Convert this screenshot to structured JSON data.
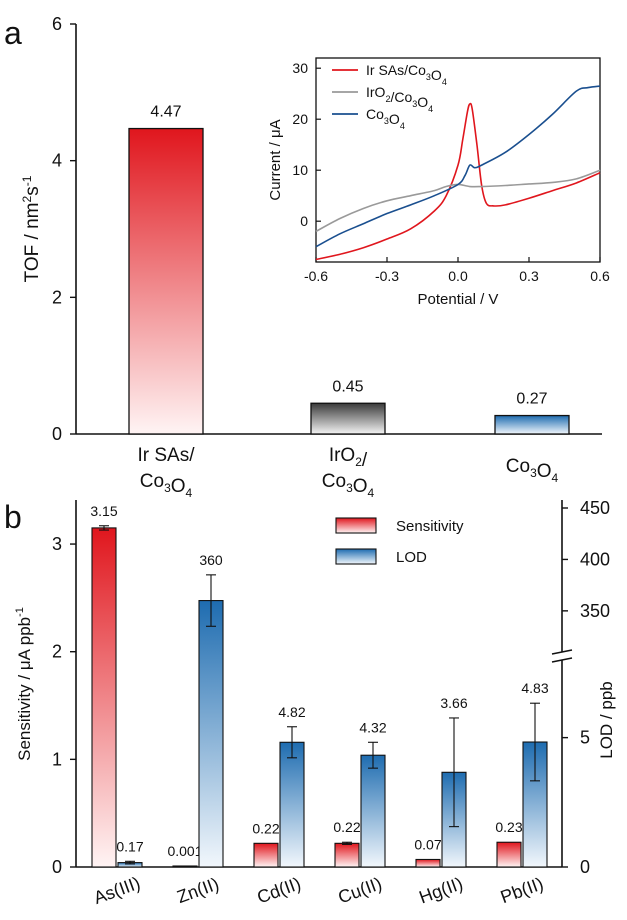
{
  "chart_data": [
    {
      "panel_label": "a",
      "type": "bar",
      "categories": [
        {
          "line1": "Ir SAs/",
          "line2": "Co₃O₄"
        },
        {
          "line1": "IrO₂/",
          "line2": "Co₃O₄"
        },
        {
          "line1": "Co₃O₄",
          "line2": ""
        }
      ],
      "values": [
        4.47,
        0.45,
        0.27
      ],
      "value_labels": [
        "4.47",
        "0.45",
        "0.27"
      ],
      "bar_colors": [
        "#e0161d",
        "#404040",
        "#1e6cb0"
      ],
      "ylabel": "TOF / nm²s⁻¹",
      "ylim": [
        0,
        6
      ],
      "yticks": [
        0,
        2,
        4,
        6
      ],
      "inset": {
        "type": "line",
        "xlabel": "Potential / V",
        "ylabel": "Current / μA",
        "xlim": [
          -0.6,
          0.6
        ],
        "ylim": [
          -8,
          32
        ],
        "xticks": [
          "-0.6",
          "-0.3",
          "0.0",
          "0.3",
          "0.6"
        ],
        "xtick_values": [
          -0.6,
          -0.3,
          0.0,
          0.3,
          0.6
        ],
        "yticks": [
          0,
          10,
          20,
          30
        ],
        "series": [
          {
            "name": "Ir SAs/Co₃O₄",
            "color": "#e0161d",
            "x": [
              -0.6,
              -0.5,
              -0.4,
              -0.3,
              -0.2,
              -0.1,
              -0.05,
              0.0,
              0.02,
              0.04,
              0.05,
              0.06,
              0.08,
              0.1,
              0.12,
              0.15,
              0.2,
              0.3,
              0.4,
              0.5,
              0.6
            ],
            "y": [
              -7.5,
              -6.5,
              -5.2,
              -3.5,
              -1.5,
              2.0,
              5.0,
              11.0,
              16.0,
              21.5,
              23.0,
              22.0,
              15.0,
              7.0,
              3.5,
              3.0,
              3.2,
              4.5,
              6.0,
              7.5,
              9.5
            ]
          },
          {
            "name": "IrO₂/Co₃O₄",
            "color": "#9a9a9a",
            "x": [
              -0.6,
              -0.5,
              -0.4,
              -0.3,
              -0.2,
              -0.1,
              -0.05,
              0.0,
              0.05,
              0.1,
              0.2,
              0.3,
              0.4,
              0.5,
              0.6
            ],
            "y": [
              -2.0,
              0.5,
              2.5,
              4.0,
              5.0,
              6.0,
              6.8,
              7.2,
              6.8,
              6.8,
              7.0,
              7.3,
              7.6,
              8.3,
              10.0
            ]
          },
          {
            "name": "Co₃O₄",
            "color": "#1a4f8f",
            "x": [
              -0.6,
              -0.5,
              -0.4,
              -0.3,
              -0.2,
              -0.1,
              0.0,
              0.03,
              0.05,
              0.07,
              0.1,
              0.2,
              0.3,
              0.4,
              0.5,
              0.55,
              0.6
            ],
            "y": [
              -5.0,
              -2.5,
              -0.5,
              1.5,
              3.2,
              5.0,
              7.2,
              9.0,
              11.0,
              10.5,
              11.0,
              13.5,
              17.0,
              21.0,
              25.5,
              26.2,
              26.5
            ]
          }
        ]
      }
    },
    {
      "panel_label": "b",
      "type": "bar",
      "categories": [
        "As(III)",
        "Zn(II)",
        "Cd(II)",
        "Cu(II)",
        "Hg(II)",
        "Pb(II)"
      ],
      "series": [
        {
          "name": "Sensitivity",
          "color": "#e0161d",
          "axis": "left",
          "values": [
            3.15,
            0.001,
            0.22,
            0.22,
            0.07,
            0.23
          ],
          "value_labels": [
            "3.15",
            "0.001",
            "0.22",
            "0.22",
            "0.07",
            "0.23"
          ],
          "errors": [
            0.02,
            0,
            0,
            0.01,
            0,
            0
          ]
        },
        {
          "name": "LOD",
          "color": "#1e6cb0",
          "axis": "right",
          "values": [
            0.17,
            360,
            4.82,
            4.32,
            3.66,
            4.83
          ],
          "value_labels": [
            "0.17",
            "360",
            "4.82",
            "4.32",
            "3.66",
            "4.83"
          ],
          "errors": [
            0.05,
            25,
            0.6,
            0.5,
            2.1,
            1.5
          ]
        }
      ],
      "ylabel_left": "Sensitivity / μA ppb⁻¹",
      "ylabel_right": "LOD / ppb",
      "ylim_left": [
        0,
        3.4
      ],
      "yticks_left": [
        0,
        1,
        2,
        3
      ],
      "right_axis_lower": {
        "range": [
          0,
          8
        ],
        "ticks": [
          0,
          5
        ]
      },
      "right_axis_upper": {
        "range": [
          310,
          450
        ],
        "ticks": [
          350,
          400,
          450
        ]
      },
      "legend_position": "top-center"
    }
  ]
}
